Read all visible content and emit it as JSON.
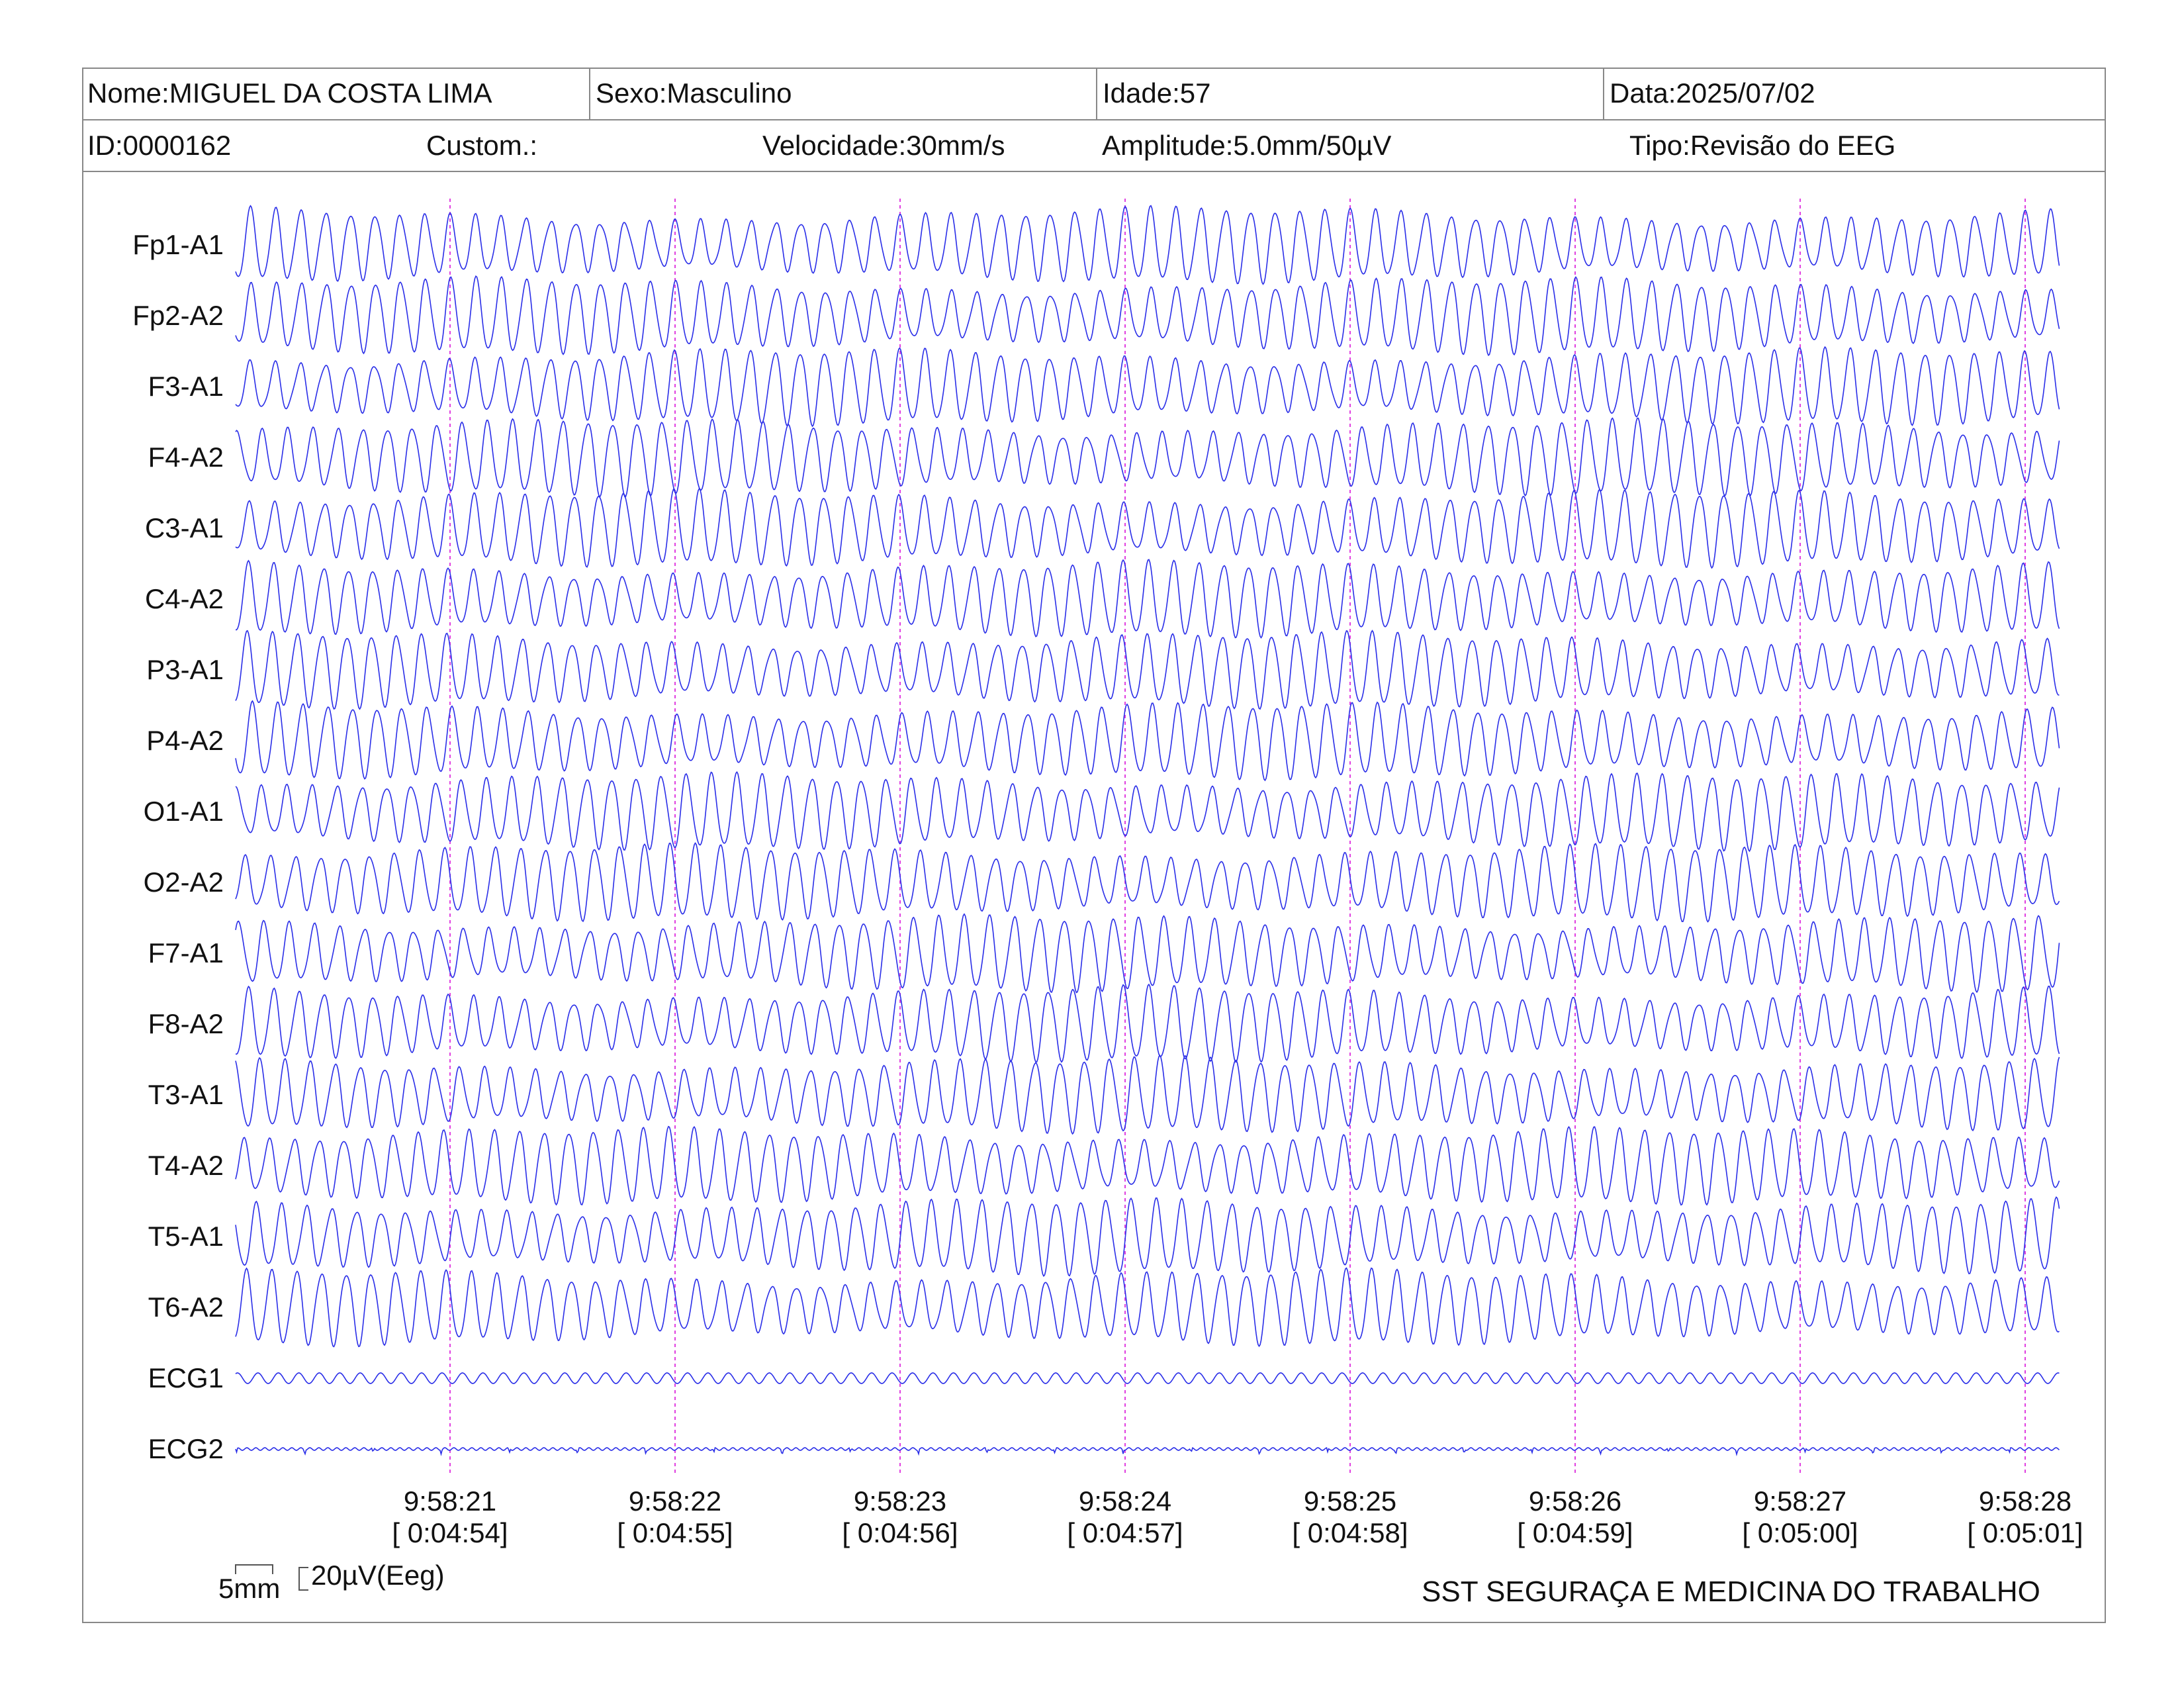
{
  "header": {
    "nome": "Nome:MIGUEL DA COSTA LIMA",
    "sexo": "Sexo:Masculino",
    "idade": "Idade:57",
    "data": "Data:2025/07/02",
    "id": "ID:0000162",
    "custom": "Custom.:",
    "velocidade": "Velocidade:30mm/s",
    "amplitude": "Amplitude:5.0mm/50µV",
    "tipo": "Tipo:Revisão do EEG"
  },
  "chart_data": {
    "type": "line",
    "title": "",
    "channels": [
      "Fp1-A1",
      "Fp2-A2",
      "F3-A1",
      "F4-A2",
      "C3-A1",
      "C4-A2",
      "P3-A1",
      "P4-A2",
      "O1-A1",
      "O2-A2",
      "F7-A1",
      "F8-A2",
      "T3-A1",
      "T4-A2",
      "T5-A1",
      "T6-A2",
      "ECG1",
      "ECG2"
    ],
    "time_markers": [
      {
        "clock": "9:58:21",
        "elapsed": "[ 0:04:54]"
      },
      {
        "clock": "9:58:22",
        "elapsed": "[ 0:04:55]"
      },
      {
        "clock": "9:58:23",
        "elapsed": "[ 0:04:56]"
      },
      {
        "clock": "9:58:24",
        "elapsed": "[ 0:04:57]"
      },
      {
        "clock": "9:58:25",
        "elapsed": "[ 0:04:58]"
      },
      {
        "clock": "9:58:26",
        "elapsed": "[ 0:04:59]"
      },
      {
        "clock": "9:58:27",
        "elapsed": "[ 0:05:00]"
      },
      {
        "clock": "9:58:28",
        "elapsed": "[ 0:05:01]"
      }
    ],
    "speed_mm_per_s": 30,
    "amplitude": "5.0mm/50µV",
    "eeg_dominant_frequency_hz": 9,
    "ecg1_frequency_hz": 11,
    "trace_color": "#2a2ee8",
    "marker_color": "#e040e0"
  },
  "scale": {
    "mm_label": "5mm",
    "uv_label": "20µV(Eeg)"
  },
  "footer": "SST SEGURAÇA E MEDICINA DO TRABALHO"
}
